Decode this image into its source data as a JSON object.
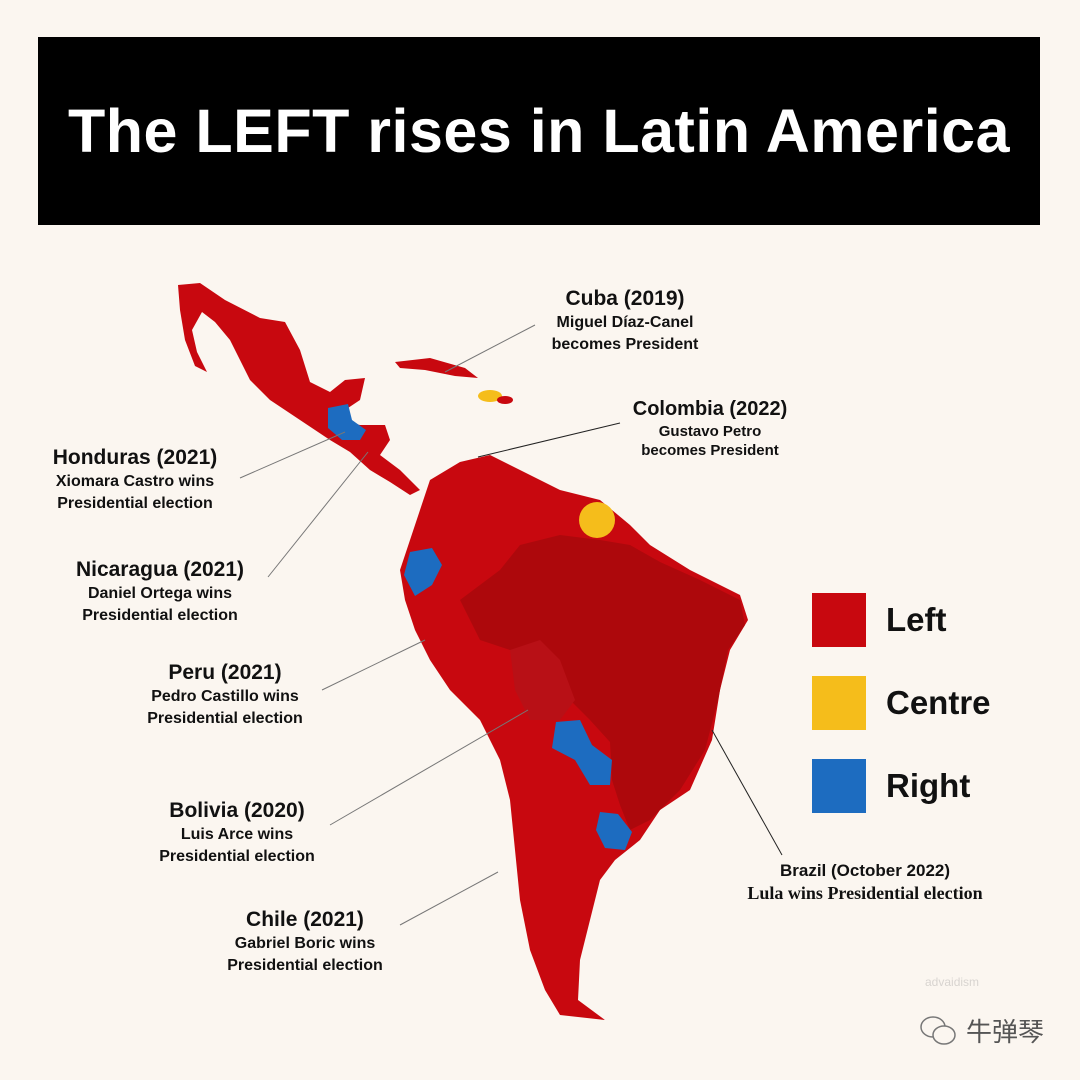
{
  "title": "The LEFT rises in Latin America",
  "colors": {
    "left": "#c8080f",
    "left_dark": "#b00a0e",
    "centre": "#f5bd1b",
    "right": "#1d6cc0",
    "background": "#fbf6f0"
  },
  "legend": [
    {
      "label": "Left",
      "color": "#c8080f"
    },
    {
      "label": "Centre",
      "color": "#f5bd1b"
    },
    {
      "label": "Right",
      "color": "#1d6cc0"
    }
  ],
  "annotations": {
    "cuba": {
      "heading": "Cuba (2019)",
      "line1": "Miguel Díaz-Canel",
      "line2": "becomes President"
    },
    "colombia": {
      "heading": "Colombia (2022)",
      "line1": "Gustavo Petro",
      "line2": "becomes President"
    },
    "honduras": {
      "heading": "Honduras (2021)",
      "line1": "Xiomara Castro wins",
      "line2": "Presidential election"
    },
    "nicaragua": {
      "heading": "Nicaragua (2021)",
      "line1": "Daniel Ortega wins",
      "line2": "Presidential election"
    },
    "peru": {
      "heading": "Peru (2021)",
      "line1": "Pedro Castillo wins",
      "line2": "Presidential election"
    },
    "bolivia": {
      "heading": "Bolivia (2020)",
      "line1": "Luis Arce wins",
      "line2": "Presidential election"
    },
    "chile": {
      "heading": "Chile (2021)",
      "line1": "Gabriel Boric wins",
      "line2": "Presidential election"
    },
    "brazil": {
      "heading": "Brazil (October 2022)",
      "line1": "Lula wins Presidential election"
    }
  },
  "watermark": "advaidism",
  "wechat_account": "牛弹琴"
}
